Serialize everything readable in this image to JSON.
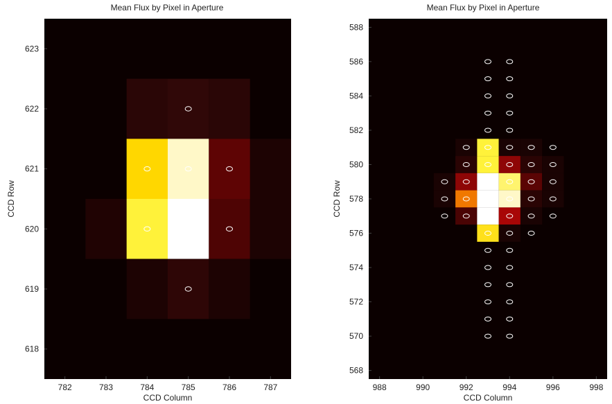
{
  "chart_data": [
    {
      "type": "heatmap",
      "title": "Mean Flux by Pixel in Aperture",
      "xlabel": "CCD Column",
      "ylabel": "CCD Row",
      "xlim": [
        781.5,
        787.5
      ],
      "ylim": [
        617.5,
        623.5
      ],
      "xticks": [
        782,
        783,
        784,
        785,
        786,
        787
      ],
      "yticks": [
        618,
        619,
        620,
        621,
        622,
        623
      ],
      "background": "#0b0000",
      "cells": [
        {
          "col": 784,
          "row": 622,
          "color": "#2a0606"
        },
        {
          "col": 785,
          "row": 622,
          "color": "#300808"
        },
        {
          "col": 786,
          "row": 622,
          "color": "#2a0606"
        },
        {
          "col": 787,
          "row": 621,
          "color": "#1d0303"
        },
        {
          "col": 784,
          "row": 621,
          "color": "#ffd700"
        },
        {
          "col": 785,
          "row": 621,
          "color": "#fff8c8"
        },
        {
          "col": 786,
          "row": 621,
          "color": "#5e0404"
        },
        {
          "col": 783,
          "row": 620,
          "color": "#200303"
        },
        {
          "col": 784,
          "row": 620,
          "color": "#fff23a"
        },
        {
          "col": 785,
          "row": 620,
          "color": "#ffffff"
        },
        {
          "col": 786,
          "row": 620,
          "color": "#4e0404"
        },
        {
          "col": 787,
          "row": 620,
          "color": "#1d0303"
        },
        {
          "col": 784,
          "row": 619,
          "color": "#1d0303"
        },
        {
          "col": 785,
          "row": 619,
          "color": "#2e0606"
        },
        {
          "col": 786,
          "row": 619,
          "color": "#1d0303"
        }
      ],
      "markers": [
        {
          "col": 785,
          "row": 622
        },
        {
          "col": 784,
          "row": 621
        },
        {
          "col": 785,
          "row": 621
        },
        {
          "col": 786,
          "row": 621
        },
        {
          "col": 784,
          "row": 620
        },
        {
          "col": 785,
          "row": 620
        },
        {
          "col": 786,
          "row": 620
        },
        {
          "col": 785,
          "row": 619
        }
      ]
    },
    {
      "type": "heatmap",
      "title": "Mean Flux by Pixel in Aperture",
      "xlabel": "CCD Column",
      "ylabel": "CCD Row",
      "xlim": [
        987.5,
        998.5
      ],
      "ylim": [
        567.5,
        588.5
      ],
      "xticks": [
        988,
        990,
        992,
        994,
        996,
        998
      ],
      "yticks": [
        568,
        570,
        572,
        574,
        576,
        578,
        580,
        582,
        584,
        586,
        588
      ],
      "background": "#0b0000",
      "cells": [
        {
          "col": 992,
          "row": 581,
          "color": "#1a0303"
        },
        {
          "col": 993,
          "row": 581,
          "color": "#fff23a"
        },
        {
          "col": 994,
          "row": 581,
          "color": "#1a0303"
        },
        {
          "col": 995,
          "row": 581,
          "color": "#1a0303"
        },
        {
          "col": 992,
          "row": 580,
          "color": "#2a0404"
        },
        {
          "col": 993,
          "row": 580,
          "color": "#fff23a"
        },
        {
          "col": 994,
          "row": 580,
          "color": "#8e0606"
        },
        {
          "col": 995,
          "row": 580,
          "color": "#2a0404"
        },
        {
          "col": 996,
          "row": 580,
          "color": "#1a0303"
        },
        {
          "col": 991,
          "row": 579,
          "color": "#1a0303"
        },
        {
          "col": 992,
          "row": 579,
          "color": "#8e0606"
        },
        {
          "col": 993,
          "row": 579,
          "color": "#ffffff"
        },
        {
          "col": 994,
          "row": 579,
          "color": "#fff46e"
        },
        {
          "col": 995,
          "row": 579,
          "color": "#5a0404"
        },
        {
          "col": 996,
          "row": 579,
          "color": "#1a0303"
        },
        {
          "col": 991,
          "row": 578,
          "color": "#1a0303"
        },
        {
          "col": 992,
          "row": 578,
          "color": "#f07800"
        },
        {
          "col": 993,
          "row": 578,
          "color": "#ffffff"
        },
        {
          "col": 994,
          "row": 578,
          "color": "#fff8c8"
        },
        {
          "col": 995,
          "row": 578,
          "color": "#2a0404"
        },
        {
          "col": 996,
          "row": 578,
          "color": "#1a0303"
        },
        {
          "col": 992,
          "row": 577,
          "color": "#4a0404"
        },
        {
          "col": 993,
          "row": 577,
          "color": "#ffffff"
        },
        {
          "col": 994,
          "row": 577,
          "color": "#a80606"
        },
        {
          "col": 995,
          "row": 577,
          "color": "#1a0303"
        },
        {
          "col": 993,
          "row": 576,
          "color": "#ffe01a"
        },
        {
          "col": 994,
          "row": 576,
          "color": "#1a0303"
        }
      ],
      "markers": [
        {
          "col": 993,
          "row": 586
        },
        {
          "col": 994,
          "row": 586
        },
        {
          "col": 993,
          "row": 585
        },
        {
          "col": 994,
          "row": 585
        },
        {
          "col": 993,
          "row": 584
        },
        {
          "col": 994,
          "row": 584
        },
        {
          "col": 993,
          "row": 583
        },
        {
          "col": 994,
          "row": 583
        },
        {
          "col": 993,
          "row": 582
        },
        {
          "col": 994,
          "row": 582
        },
        {
          "col": 992,
          "row": 581
        },
        {
          "col": 993,
          "row": 581
        },
        {
          "col": 994,
          "row": 581
        },
        {
          "col": 995,
          "row": 581
        },
        {
          "col": 996,
          "row": 581
        },
        {
          "col": 992,
          "row": 580
        },
        {
          "col": 993,
          "row": 580
        },
        {
          "col": 994,
          "row": 580
        },
        {
          "col": 995,
          "row": 580
        },
        {
          "col": 996,
          "row": 580
        },
        {
          "col": 991,
          "row": 579
        },
        {
          "col": 992,
          "row": 579
        },
        {
          "col": 993,
          "row": 579
        },
        {
          "col": 994,
          "row": 579
        },
        {
          "col": 995,
          "row": 579
        },
        {
          "col": 996,
          "row": 579
        },
        {
          "col": 991,
          "row": 578
        },
        {
          "col": 992,
          "row": 578
        },
        {
          "col": 993,
          "row": 578
        },
        {
          "col": 994,
          "row": 578
        },
        {
          "col": 995,
          "row": 578
        },
        {
          "col": 996,
          "row": 578
        },
        {
          "col": 991,
          "row": 577
        },
        {
          "col": 992,
          "row": 577
        },
        {
          "col": 993,
          "row": 577
        },
        {
          "col": 994,
          "row": 577
        },
        {
          "col": 995,
          "row": 577
        },
        {
          "col": 996,
          "row": 577
        },
        {
          "col": 993,
          "row": 576
        },
        {
          "col": 994,
          "row": 576
        },
        {
          "col": 995,
          "row": 576
        },
        {
          "col": 993,
          "row": 575
        },
        {
          "col": 994,
          "row": 575
        },
        {
          "col": 993,
          "row": 574
        },
        {
          "col": 994,
          "row": 574
        },
        {
          "col": 993,
          "row": 573
        },
        {
          "col": 994,
          "row": 573
        },
        {
          "col": 993,
          "row": 572
        },
        {
          "col": 994,
          "row": 572
        },
        {
          "col": 993,
          "row": 571
        },
        {
          "col": 994,
          "row": 571
        },
        {
          "col": 993,
          "row": 570
        },
        {
          "col": 994,
          "row": 570
        }
      ]
    }
  ]
}
